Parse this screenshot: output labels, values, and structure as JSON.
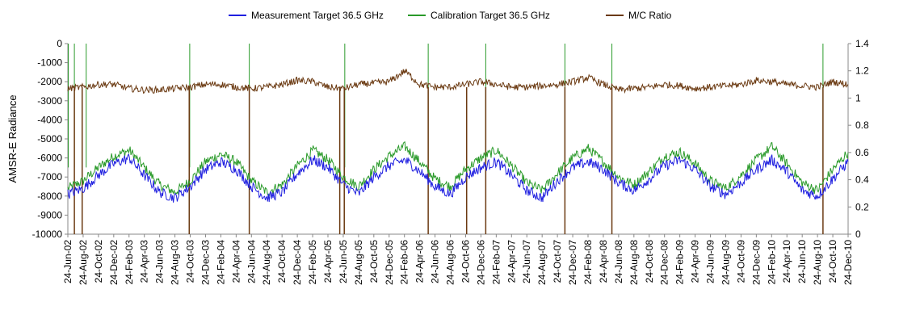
{
  "chart_data": {
    "type": "line",
    "title": "",
    "ylabel_left": "AMSR-E Radiance",
    "ylabel_right": "",
    "xlabel": "",
    "y_left_lim": [
      -10000,
      0
    ],
    "y_left_ticks": [
      "0",
      "-1000",
      "-2000",
      "-3000",
      "-4000",
      "-5000",
      "-6000",
      "-7000",
      "-8000",
      "-9000",
      "-10000"
    ],
    "y_right_lim": [
      0,
      1.4
    ],
    "y_right_ticks": [
      "1.4",
      "1.2",
      "1",
      "0.8",
      "0.6",
      "0.4",
      "0.2",
      "0"
    ],
    "x_ticks": [
      "24-Jun-02",
      "24-Aug-02",
      "24-Oct-02",
      "24-Dec-02",
      "24-Feb-03",
      "24-Apr-03",
      "24-Jun-03",
      "24-Aug-03",
      "24-Oct-03",
      "24-Dec-03",
      "24-Feb-04",
      "24-Apr-04",
      "24-Jun-04",
      "24-Aug-04",
      "24-Oct-04",
      "24-Dec-04",
      "24-Feb-05",
      "24-Apr-05",
      "24-Jun-05",
      "24-Aug-05",
      "24-Oct-05",
      "24-Dec-05",
      "24-Feb-06",
      "24-Apr-06",
      "24-Jun-06",
      "24-Aug-06",
      "24-Oct-06",
      "24-Dec-06",
      "24-Feb-07",
      "24-Apr-07",
      "24-Jun-07",
      "24-Aug-07",
      "24-Oct-07",
      "24-Dec-07",
      "24-Feb-08",
      "24-Apr-08",
      "24-Jun-08",
      "24-Aug-08",
      "24-Oct-08",
      "24-Dec-08",
      "24-Feb-09",
      "24-Apr-09",
      "24-Jun-09",
      "24-Aug-09",
      "24-Oct-09",
      "24-Dec-09",
      "24-Feb-10",
      "24-Apr-10",
      "24-Jun-10",
      "24-Aug-10",
      "24-Oct-10",
      "24-Dec-10"
    ],
    "legend_position": "top",
    "grid": false,
    "series": [
      {
        "name": "Measurement Target 36.5 GHz",
        "axis": "left",
        "color": "#2020e0",
        "x": [
          "2002-06-24",
          "2002-08-24",
          "2002-10-24",
          "2002-12-24",
          "2003-02-24",
          "2003-04-24",
          "2003-06-24",
          "2003-08-24",
          "2003-10-24",
          "2003-12-24",
          "2004-02-24",
          "2004-04-24",
          "2004-06-24",
          "2004-08-24",
          "2004-10-24",
          "2004-12-24",
          "2005-02-24",
          "2005-04-24",
          "2005-06-24",
          "2005-08-24",
          "2005-10-24",
          "2005-12-24",
          "2006-02-24",
          "2006-04-24",
          "2006-06-24",
          "2006-08-24",
          "2006-10-24",
          "2006-12-24",
          "2007-02-24",
          "2007-04-24",
          "2007-06-24",
          "2007-08-24",
          "2007-10-24",
          "2007-12-24",
          "2008-02-24",
          "2008-04-24",
          "2008-06-24",
          "2008-08-24",
          "2008-10-24",
          "2008-12-24",
          "2009-02-24",
          "2009-04-24",
          "2009-06-24",
          "2009-08-24",
          "2009-10-24",
          "2009-12-24",
          "2010-02-24",
          "2010-04-24",
          "2010-06-24",
          "2010-08-24",
          "2010-10-24",
          "2010-12-24"
        ],
        "values": [
          -7900,
          -7600,
          -6900,
          -6300,
          -6000,
          -6900,
          -7800,
          -8100,
          -7500,
          -6600,
          -6200,
          -6600,
          -7500,
          -8100,
          -7800,
          -6800,
          -6100,
          -6500,
          -7400,
          -7900,
          -7000,
          -6400,
          -6100,
          -6700,
          -7500,
          -7900,
          -7000,
          -6500,
          -6200,
          -6900,
          -7700,
          -8100,
          -7200,
          -6500,
          -6200,
          -6600,
          -7300,
          -7700,
          -7100,
          -6400,
          -6100,
          -6600,
          -7500,
          -7900,
          -7300,
          -6600,
          -6100,
          -6700,
          -7700,
          -8000,
          -7100,
          -6200
        ]
      },
      {
        "name": "Calibration Target 36.5 GHz",
        "axis": "left",
        "color": "#2a9a2a",
        "x": [
          "2002-06-24",
          "2002-08-24",
          "2002-10-24",
          "2002-12-24",
          "2003-02-24",
          "2003-04-24",
          "2003-06-24",
          "2003-08-24",
          "2003-10-24",
          "2003-12-24",
          "2004-02-24",
          "2004-04-24",
          "2004-06-24",
          "2004-08-24",
          "2004-10-24",
          "2004-12-24",
          "2005-02-24",
          "2005-04-24",
          "2005-06-24",
          "2005-08-24",
          "2005-10-24",
          "2005-12-24",
          "2006-02-24",
          "2006-04-24",
          "2006-06-24",
          "2006-08-24",
          "2006-10-24",
          "2006-12-24",
          "2007-02-24",
          "2007-04-24",
          "2007-06-24",
          "2007-08-24",
          "2007-10-24",
          "2007-12-24",
          "2008-02-24",
          "2008-04-24",
          "2008-06-24",
          "2008-08-24",
          "2008-10-24",
          "2008-12-24",
          "2009-02-24",
          "2009-04-24",
          "2009-06-24",
          "2009-08-24",
          "2009-10-24",
          "2009-12-24",
          "2010-02-24",
          "2010-04-24",
          "2010-06-24",
          "2010-08-24",
          "2010-10-24",
          "2010-12-24"
        ],
        "values": [
          -7600,
          -7200,
          -6500,
          -5900,
          -5600,
          -6500,
          -7400,
          -7800,
          -7200,
          -6200,
          -5800,
          -6200,
          -7200,
          -7800,
          -7400,
          -6400,
          -5600,
          -6100,
          -7000,
          -7500,
          -6600,
          -5900,
          -5400,
          -6200,
          -7100,
          -7500,
          -6600,
          -6000,
          -5600,
          -6400,
          -7300,
          -7700,
          -6800,
          -6000,
          -5500,
          -6200,
          -7000,
          -7400,
          -6700,
          -5900,
          -5700,
          -6300,
          -7200,
          -7600,
          -6900,
          -6100,
          -5400,
          -6300,
          -7300,
          -7700,
          -6600,
          -5700
        ]
      },
      {
        "name": "M/C Ratio",
        "axis": "right",
        "color": "#6b3a12",
        "x": [
          "2002-06-24",
          "2002-08-24",
          "2002-10-24",
          "2002-12-24",
          "2003-02-24",
          "2003-04-24",
          "2003-06-24",
          "2003-08-24",
          "2003-10-24",
          "2003-12-24",
          "2004-02-24",
          "2004-04-24",
          "2004-06-24",
          "2004-08-24",
          "2004-10-24",
          "2004-12-24",
          "2005-02-24",
          "2005-04-24",
          "2005-06-24",
          "2005-08-24",
          "2005-10-24",
          "2005-12-24",
          "2006-02-24",
          "2006-04-24",
          "2006-06-24",
          "2006-08-24",
          "2006-10-24",
          "2006-12-24",
          "2007-02-24",
          "2007-04-24",
          "2007-06-24",
          "2007-08-24",
          "2007-10-24",
          "2007-12-24",
          "2008-02-24",
          "2008-04-24",
          "2008-06-24",
          "2008-08-24",
          "2008-10-24",
          "2008-12-24",
          "2009-02-24",
          "2009-04-24",
          "2009-06-24",
          "2009-08-24",
          "2009-10-24",
          "2009-12-24",
          "2010-02-24",
          "2010-04-24",
          "2010-06-24",
          "2010-08-24",
          "2010-10-24",
          "2010-12-24"
        ],
        "values": [
          1.07,
          1.08,
          1.1,
          1.1,
          1.07,
          1.06,
          1.06,
          1.07,
          1.08,
          1.1,
          1.1,
          1.08,
          1.07,
          1.08,
          1.1,
          1.13,
          1.12,
          1.08,
          1.07,
          1.1,
          1.11,
          1.12,
          1.2,
          1.1,
          1.08,
          1.08,
          1.1,
          1.12,
          1.1,
          1.08,
          1.08,
          1.09,
          1.1,
          1.12,
          1.15,
          1.1,
          1.06,
          1.07,
          1.08,
          1.1,
          1.09,
          1.07,
          1.08,
          1.09,
          1.1,
          1.13,
          1.12,
          1.1,
          1.09,
          1.08,
          1.12,
          1.1
        ],
        "drop_to_zero_dates": [
          "2002-07-20",
          "2002-08-20",
          "2003-10-20",
          "2004-06-15",
          "2005-06-10",
          "2005-06-28",
          "2006-05-28",
          "2006-10-28",
          "2007-01-12",
          "2007-11-23",
          "2008-05-28",
          "2010-09-15"
        ]
      }
    ],
    "calibration_spike_dates": [
      "2002-06-26",
      "2002-07-20",
      "2002-09-05",
      "2003-10-22",
      "2004-06-15",
      "2005-06-30",
      "2006-05-28",
      "2007-01-12",
      "2007-11-23",
      "2008-05-28",
      "2010-09-15"
    ]
  }
}
